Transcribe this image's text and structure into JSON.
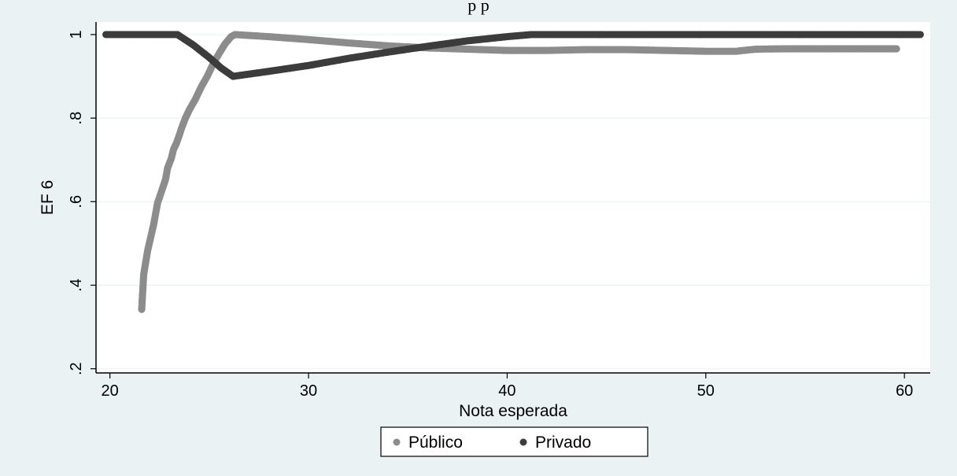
{
  "chart_data": {
    "type": "scatter",
    "title_partial": "p   p",
    "xlabel": "Nota esperada",
    "ylabel": "EF 6",
    "xlim": [
      19.3,
      61.3
    ],
    "ylim": [
      0.19,
      1.03
    ],
    "x_ticks": [
      20,
      30,
      40,
      50,
      60
    ],
    "x_tick_labels": [
      "20",
      "30",
      "40",
      "50",
      "60"
    ],
    "y_ticks": [
      0.2,
      0.4,
      0.6,
      0.8,
      1
    ],
    "y_tick_labels": [
      ".2",
      ".4",
      ".6",
      ".8",
      "1"
    ],
    "grid": true,
    "legend_position": "bottom",
    "colors": {
      "background": "#eaf2f3",
      "plot_background": "#ffffff",
      "grid": "#eaf2f3",
      "publico": "#8c8c8c",
      "privado": "#3c3c3c"
    },
    "series": [
      {
        "name": "Público",
        "points": [
          [
            21.6,
            0.342
          ],
          [
            21.7,
            0.426
          ],
          [
            21.9,
            0.483
          ],
          [
            22.2,
            0.545
          ],
          [
            22.4,
            0.597
          ],
          [
            22.6,
            0.625
          ],
          [
            22.8,
            0.653
          ],
          [
            22.9,
            0.68
          ],
          [
            23.1,
            0.705
          ],
          [
            23.2,
            0.725
          ],
          [
            23.35,
            0.74
          ],
          [
            23.5,
            0.76
          ],
          [
            23.6,
            0.775
          ],
          [
            23.8,
            0.8
          ],
          [
            24.0,
            0.82
          ],
          [
            24.3,
            0.845
          ],
          [
            24.6,
            0.875
          ],
          [
            24.9,
            0.9
          ],
          [
            25.2,
            0.93
          ],
          [
            25.5,
            0.955
          ],
          [
            25.8,
            0.978
          ],
          [
            26.1,
            0.995
          ],
          [
            26.3,
            1.0
          ],
          [
            28,
            0.995
          ],
          [
            30,
            0.988
          ],
          [
            32,
            0.98
          ],
          [
            34,
            0.973
          ],
          [
            36,
            0.968
          ],
          [
            38,
            0.965
          ],
          [
            40,
            0.962
          ],
          [
            42,
            0.962
          ],
          [
            44,
            0.964
          ],
          [
            46,
            0.964
          ],
          [
            48,
            0.962
          ],
          [
            50,
            0.96
          ],
          [
            51.5,
            0.96
          ],
          [
            52.5,
            0.965
          ],
          [
            54,
            0.966
          ],
          [
            56,
            0.966
          ],
          [
            58,
            0.966
          ],
          [
            58.8,
            0.966
          ],
          [
            59.6,
            0.966
          ]
        ]
      },
      {
        "name": "Privado",
        "points": [
          [
            19.8,
            1.0
          ],
          [
            20.5,
            1.0
          ],
          [
            21.5,
            1.0
          ],
          [
            22.5,
            1.0
          ],
          [
            23.4,
            1.0
          ],
          [
            24.2,
            0.975
          ],
          [
            25.0,
            0.945
          ],
          [
            25.6,
            0.92
          ],
          [
            26.2,
            0.9
          ],
          [
            28,
            0.912
          ],
          [
            30,
            0.926
          ],
          [
            32,
            0.943
          ],
          [
            34,
            0.958
          ],
          [
            36,
            0.972
          ],
          [
            38,
            0.985
          ],
          [
            40,
            0.995
          ],
          [
            41.2,
            1.0
          ],
          [
            44,
            1.0
          ],
          [
            48,
            1.0
          ],
          [
            52,
            1.0
          ],
          [
            56,
            1.0
          ],
          [
            58.5,
            1.0
          ],
          [
            59.5,
            1.0
          ],
          [
            60.2,
            1.0
          ],
          [
            60.8,
            1.0
          ]
        ]
      }
    ]
  }
}
